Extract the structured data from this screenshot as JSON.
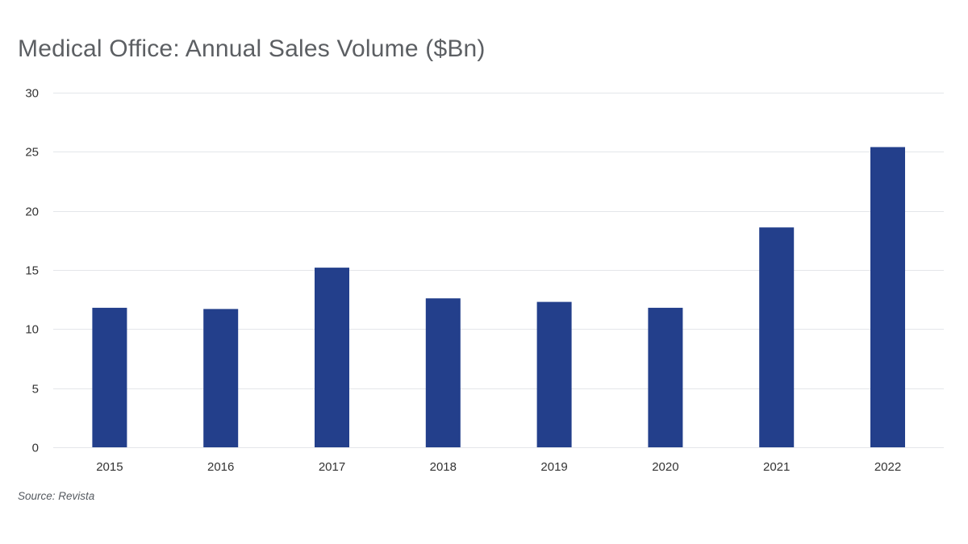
{
  "colors": {
    "bar": "#233f8b",
    "grid": "#e4e6ea",
    "title": "#5c5f63",
    "text": "#333333"
  },
  "chart_data": {
    "type": "bar",
    "title": "Medical Office: Annual Sales Volume ($Bn)",
    "xlabel": "",
    "ylabel": "",
    "categories": [
      "2015",
      "2016",
      "2017",
      "2018",
      "2019",
      "2020",
      "2021",
      "2022"
    ],
    "series": [
      {
        "name": "Annual Sales Volume ($Bn)",
        "values": [
          11.8,
          11.7,
          15.2,
          12.6,
          12.3,
          11.8,
          18.6,
          25.4
        ]
      }
    ],
    "ylim": [
      0,
      30
    ],
    "yticks": [
      "0",
      "5",
      "10",
      "15",
      "20",
      "25",
      "30"
    ],
    "grid": true,
    "legend": "none",
    "source": "Source: Revista"
  }
}
